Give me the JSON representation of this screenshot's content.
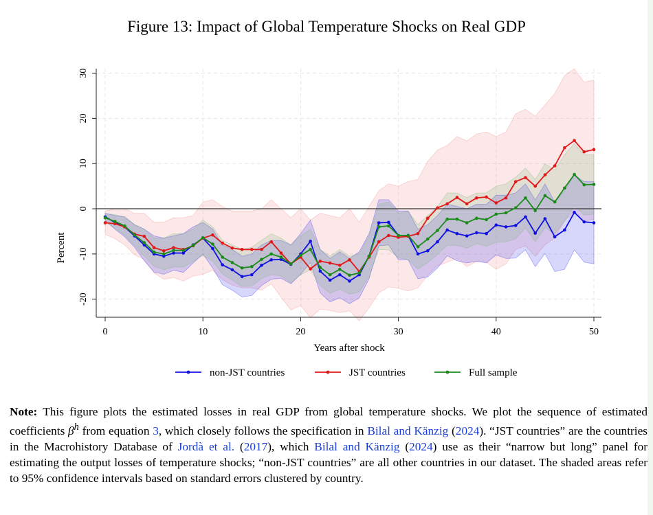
{
  "figure": {
    "title": "Figure 13: Impact of Global Temperature Shocks on Real GDP"
  },
  "chart_data": {
    "type": "line",
    "xlabel": "Years after shock",
    "ylabel": "Percent",
    "xlim": [
      0,
      50
    ],
    "ylim": [
      -24,
      31
    ],
    "xticks": [
      0,
      10,
      20,
      30,
      40,
      50
    ],
    "yticks": [
      -20,
      -10,
      0,
      10,
      20,
      30
    ],
    "ytick_labels": [
      "-20",
      "-10",
      "0",
      "10",
      "20",
      "30"
    ],
    "grid": true,
    "legend_position": "bottom",
    "zero_line": true,
    "x": [
      0,
      1,
      2,
      3,
      4,
      5,
      6,
      7,
      8,
      9,
      10,
      11,
      12,
      13,
      14,
      15,
      16,
      17,
      18,
      19,
      20,
      21,
      22,
      23,
      24,
      25,
      26,
      27,
      28,
      29,
      30,
      31,
      32,
      33,
      34,
      35,
      36,
      37,
      38,
      39,
      40,
      41,
      42,
      43,
      44,
      45,
      46,
      47,
      48,
      49,
      50
    ],
    "series": [
      {
        "name": "non-JST countries",
        "color": "#1010e0",
        "band_color": "#2020f0",
        "values": [
          -1.8,
          -3.0,
          -4.0,
          -6.0,
          -8.0,
          -10.0,
          -10.5,
          -9.8,
          -9.8,
          -8.0,
          -6.5,
          -8.8,
          -12.4,
          -13.5,
          -15.0,
          -14.6,
          -12.5,
          -11.3,
          -11.2,
          -12.3,
          -10.0,
          -7.2,
          -13.8,
          -15.8,
          -14.6,
          -16.0,
          -14.6,
          -10.5,
          -3.1,
          -3.0,
          -5.9,
          -5.9,
          -10.0,
          -9.3,
          -7.3,
          -4.7,
          -5.5,
          -6.0,
          -5.3,
          -5.5,
          -3.6,
          -4.0,
          -3.7,
          -1.8,
          -5.4,
          -2.2,
          -6.2,
          -4.7,
          -0.8,
          -2.9,
          -3.1
        ],
        "ci_upper": [
          -1.0,
          -1.5,
          -1.8,
          -3.5,
          -4.5,
          -6.0,
          -6.5,
          -6.0,
          -5.5,
          -4.0,
          -3.0,
          -4.5,
          -8.0,
          -9.0,
          -10.5,
          -10.0,
          -8.0,
          -7.0,
          -7.0,
          -8.0,
          -5.5,
          -2.5,
          -9.0,
          -11.0,
          -9.5,
          -11.0,
          -9.5,
          -5.5,
          2.0,
          2.0,
          -0.5,
          -0.5,
          -4.5,
          -3.5,
          -1.5,
          1.0,
          0.5,
          0.0,
          1.0,
          1.0,
          3.0,
          3.0,
          3.5,
          5.5,
          2.0,
          5.5,
          1.5,
          4.0,
          7.5,
          6.0,
          6.0
        ],
        "ci_lower": [
          -2.6,
          -4.5,
          -6.2,
          -8.5,
          -11.5,
          -14.0,
          -14.5,
          -13.6,
          -14.1,
          -12.0,
          -10.0,
          -13.1,
          -16.8,
          -18.0,
          -19.5,
          -19.2,
          -17.0,
          -15.6,
          -15.4,
          -16.6,
          -14.5,
          -11.9,
          -18.6,
          -20.6,
          -19.7,
          -21.0,
          -19.7,
          -15.5,
          -8.2,
          -8.0,
          -11.3,
          -11.3,
          -15.5,
          -15.1,
          -13.1,
          -10.4,
          -11.5,
          -12.0,
          -11.6,
          -12.0,
          -10.2,
          -11.0,
          -10.9,
          -9.1,
          -12.8,
          -9.9,
          -13.9,
          -13.4,
          -9.1,
          -11.8,
          -12.2
        ]
      },
      {
        "name": "JST countries",
        "color": "#e01818",
        "band_color": "#f08080",
        "values": [
          -3.1,
          -3.3,
          -4.0,
          -5.6,
          -6.1,
          -8.6,
          -9.3,
          -8.6,
          -9.0,
          -8.2,
          -6.5,
          -5.8,
          -7.6,
          -8.7,
          -9.0,
          -9.0,
          -9.0,
          -7.3,
          -9.8,
          -12.2,
          -10.7,
          -13.3,
          -11.6,
          -12.0,
          -12.5,
          -11.3,
          -13.9,
          -10.7,
          -7.3,
          -5.9,
          -6.3,
          -6.1,
          -5.5,
          -2.1,
          0.2,
          1.1,
          2.5,
          1.1,
          2.4,
          2.6,
          1.3,
          2.4,
          6.0,
          6.9,
          5.0,
          7.5,
          9.5,
          13.5,
          15.1,
          12.6,
          13.1
        ],
        "ci_upper": [
          -0.5,
          0.0,
          0.0,
          -1.0,
          -1.0,
          -3.0,
          -3.0,
          -2.0,
          -2.0,
          -1.5,
          1.5,
          2.0,
          0.5,
          -0.5,
          -0.5,
          -0.5,
          0.0,
          2.0,
          0.0,
          -2.0,
          0.0,
          -2.5,
          -1.0,
          -1.5,
          -2.0,
          0.0,
          -3.0,
          0.5,
          4.0,
          5.5,
          5.0,
          6.0,
          6.5,
          10.5,
          13.0,
          14.0,
          16.0,
          15.0,
          16.5,
          17.0,
          16.0,
          17.0,
          21.0,
          22.0,
          20.5,
          23.0,
          25.5,
          29.5,
          31.0,
          28.0,
          28.5
        ],
        "ci_lower": [
          -5.7,
          -6.6,
          -8.0,
          -10.2,
          -11.2,
          -14.2,
          -15.6,
          -15.2,
          -16.0,
          -14.9,
          -14.5,
          -13.6,
          -15.7,
          -16.9,
          -17.5,
          -17.5,
          -18.0,
          -16.6,
          -19.6,
          -22.4,
          -21.4,
          -24.1,
          -22.2,
          -22.5,
          -23.0,
          -22.6,
          -24.8,
          -21.9,
          -18.6,
          -17.3,
          -17.6,
          -18.2,
          -17.5,
          -14.7,
          -12.6,
          -11.8,
          -11.0,
          -12.8,
          -11.7,
          -11.8,
          -13.4,
          -12.2,
          -9.0,
          -8.2,
          -10.5,
          -8.0,
          -6.5,
          -2.5,
          -0.8,
          -2.8,
          -2.3
        ]
      },
      {
        "name": "Full sample",
        "color": "#1a8a1a",
        "band_color": "#70b070",
        "values": [
          -2.0,
          -2.8,
          -3.8,
          -5.8,
          -7.5,
          -9.6,
          -10.0,
          -9.2,
          -9.2,
          -8.1,
          -6.4,
          -7.8,
          -10.7,
          -11.9,
          -13.1,
          -12.8,
          -11.2,
          -10.0,
          -10.7,
          -12.2,
          -10.3,
          -9.0,
          -13.0,
          -14.6,
          -13.4,
          -14.7,
          -14.2,
          -10.5,
          -4.0,
          -3.8,
          -5.9,
          -5.9,
          -8.4,
          -6.7,
          -4.8,
          -2.3,
          -2.3,
          -3.1,
          -2.1,
          -2.4,
          -1.2,
          -0.9,
          0.2,
          2.4,
          -0.4,
          2.9,
          1.5,
          4.6,
          7.6,
          5.3,
          5.4
        ],
        "ci_upper": [
          -1.0,
          -1.3,
          -1.8,
          -3.5,
          -4.5,
          -6.5,
          -6.5,
          -5.5,
          -5.5,
          -4.5,
          -2.5,
          -4.0,
          -7.0,
          -8.0,
          -9.0,
          -8.5,
          -7.0,
          -5.5,
          -6.5,
          -8.0,
          -6.0,
          -4.5,
          -9.0,
          -10.5,
          -9.0,
          -10.5,
          -10.0,
          -6.0,
          1.0,
          1.5,
          -1.0,
          -0.5,
          -3.5,
          -1.5,
          0.5,
          3.5,
          3.5,
          2.5,
          3.5,
          3.5,
          5.0,
          5.5,
          7.0,
          9.0,
          6.5,
          10.0,
          8.5,
          12.0,
          14.5,
          12.0,
          12.0
        ],
        "ci_lower": [
          -3.0,
          -4.3,
          -5.8,
          -8.1,
          -10.5,
          -12.7,
          -13.5,
          -12.9,
          -12.9,
          -11.7,
          -10.3,
          -11.6,
          -14.4,
          -15.8,
          -17.2,
          -17.1,
          -15.4,
          -14.5,
          -14.9,
          -16.4,
          -14.6,
          -13.5,
          -17.0,
          -18.7,
          -17.8,
          -18.9,
          -18.4,
          -15.0,
          -9.0,
          -9.1,
          -10.8,
          -11.3,
          -13.3,
          -11.9,
          -10.1,
          -8.1,
          -8.1,
          -8.7,
          -7.7,
          -8.3,
          -7.4,
          -7.3,
          -6.6,
          -4.2,
          -7.3,
          -4.2,
          -5.5,
          -2.8,
          0.7,
          -1.4,
          -1.2
        ]
      }
    ]
  },
  "note": {
    "label": "Note:",
    "t1": " This figure plots the estimated losses in real GDP from global temperature shocks. We plot the sequence of estimated coefficients ",
    "beta": "β",
    "beta_sup": "h",
    "t2": " from equation ",
    "eq_ref": "3",
    "t3": ", which closely follows the specification in ",
    "cite1": "Bilal and Känzig",
    "t4": " (",
    "year1": "2024",
    "t5": "). “JST countries” are the countries in the Macrohistory Database of ",
    "cite2": "Jordà et al.",
    "t6": " (",
    "year2": "2017",
    "t7": "), which ",
    "cite3": "Bilal and Känzig",
    "t8": " (",
    "year3": "2024",
    "t9": ") use as their “narrow but long” panel for estimating the output losses of temperature shocks; “non-JST countries” are all other countries in our dataset. The shaded areas refer to 95% confidence intervals based on standard errors clustered by country."
  }
}
